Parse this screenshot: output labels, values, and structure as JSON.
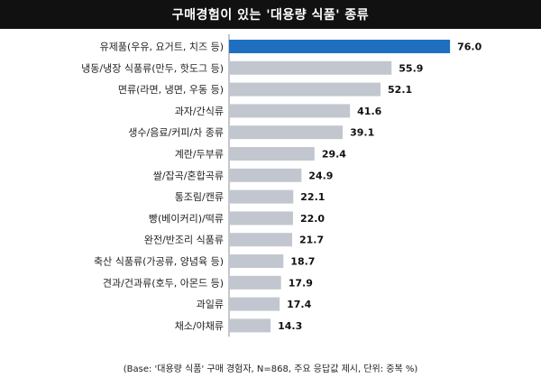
{
  "chart_data": {
    "type": "bar",
    "orientation": "horizontal",
    "title": "구매경험이 있는 '대용량 식품' 종류",
    "categories": [
      "유제품(우유, 요거트, 치즈 등)",
      "냉동/냉장 식품류(만두, 핫도그 등)",
      "면류(라면, 냉면, 우동 등)",
      "과자/간식류",
      "생수/음료/커피/차 종류",
      "계란/두부류",
      "쌀/잡곡/혼합곡류",
      "통조림/캔류",
      "빵(베이커리)/떡류",
      "완전/반조리 식품류",
      "축산 식품류(가공류, 양념육 등)",
      "견과/건과류(호두, 아몬드 등)",
      "과일류",
      "채소/야채류"
    ],
    "values": [
      76.0,
      55.9,
      52.1,
      41.6,
      39.1,
      29.4,
      24.9,
      22.1,
      22.0,
      21.7,
      18.7,
      17.9,
      17.4,
      14.3
    ],
    "value_labels": [
      "76.0",
      "55.9",
      "52.1",
      "41.6",
      "39.1",
      "29.4",
      "24.9",
      "22.1",
      "22.0",
      "21.7",
      "18.7",
      "17.9",
      "17.4",
      "14.3"
    ],
    "xlim": [
      0,
      80
    ],
    "grid": false,
    "colors": {
      "highlight": "#1f6fc0",
      "default": "#c2c7cf"
    },
    "footnote": "(Base: '대용량 식품' 구매 경험자, N=868, 주요 응답값 제시, 단위: 중복 %)"
  }
}
